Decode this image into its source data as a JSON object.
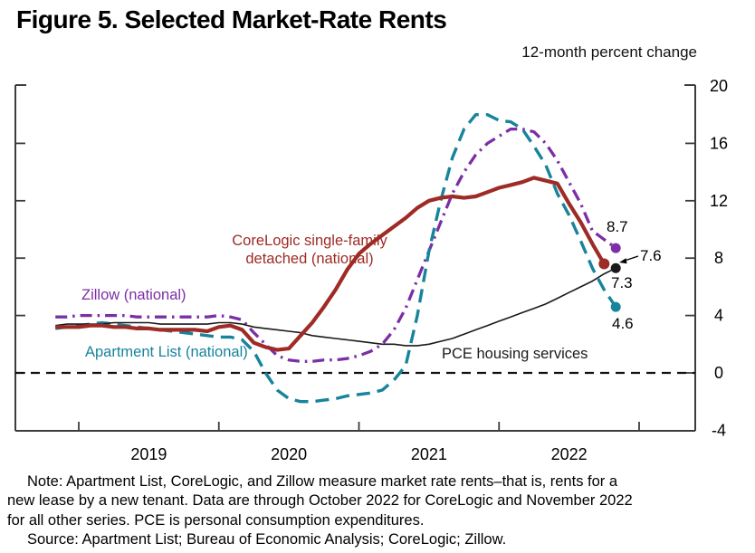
{
  "title": "Figure 5. Selected Market-Rate Rents",
  "axis_caption": "12-month percent change",
  "chart_data": {
    "type": "line",
    "title": "Figure 5. Selected Market-Rate Rents",
    "ylabel": "12-month percent change",
    "ylim": [
      -4,
      20
    ],
    "yticks": [
      20,
      16,
      12,
      8,
      4,
      0,
      -4
    ],
    "ytick_labels": [
      "20",
      "16",
      "12",
      "8",
      "4",
      "0",
      "-4"
    ],
    "x_labels": [
      "2019",
      "2020",
      "2021",
      "2022"
    ],
    "x_start": "2018-11",
    "zero_line": true,
    "legend_position": "on-chart",
    "series": [
      {
        "name": "CoreLogic single-family detached (national)",
        "slug": "corelogic",
        "color": "#9E2B25",
        "style": "solid",
        "end_label": "7.6",
        "last_month": "2022-10",
        "values": [
          3.2,
          3.2,
          3.2,
          3.3,
          3.3,
          3.2,
          3.2,
          3.1,
          3.1,
          3.0,
          3.0,
          3.0,
          3.0,
          2.9,
          3.2,
          3.3,
          3.0,
          2.1,
          1.8,
          1.6,
          1.7,
          2.6,
          3.5,
          4.6,
          5.8,
          7.2,
          8.3,
          9.0,
          9.6,
          10.2,
          10.8,
          11.5,
          12.0,
          12.2,
          12.3,
          12.2,
          12.3,
          12.6,
          12.9,
          13.1,
          13.3,
          13.6,
          13.4,
          13.2,
          11.8,
          10.5,
          9.0,
          7.6
        ]
      },
      {
        "name": "Zillow (national)",
        "slug": "zillow",
        "color": "#7B2EA6",
        "style": "dashdot",
        "end_label": "8.7",
        "last_month": "2022-11",
        "values": [
          3.9,
          3.9,
          4.0,
          4.0,
          4.0,
          4.0,
          4.0,
          3.9,
          3.9,
          3.9,
          3.9,
          3.9,
          3.9,
          3.9,
          4.0,
          3.9,
          3.7,
          2.8,
          2.0,
          1.2,
          0.9,
          0.8,
          0.8,
          0.9,
          0.9,
          1.0,
          1.2,
          1.5,
          2.0,
          3.0,
          4.5,
          6.5,
          8.5,
          10.5,
          12.5,
          14.0,
          15.2,
          16.0,
          16.5,
          17.0,
          17.0,
          16.8,
          16.0,
          14.8,
          13.3,
          11.8,
          9.9,
          9.3,
          8.7
        ]
      },
      {
        "name": "Apartment List (national)",
        "slug": "apartment-list",
        "color": "#17849B",
        "style": "dashed",
        "end_label": "4.6",
        "last_month": "2022-11",
        "values": [
          3.1,
          3.2,
          3.3,
          3.4,
          3.5,
          3.4,
          3.3,
          3.2,
          3.1,
          3.0,
          2.9,
          2.8,
          2.7,
          2.6,
          2.5,
          2.5,
          2.3,
          1.5,
          0.0,
          -1.2,
          -1.8,
          -2.0,
          -2.0,
          -1.9,
          -1.8,
          -1.6,
          -1.5,
          -1.4,
          -1.2,
          -0.5,
          0.5,
          4.0,
          8.5,
          12.0,
          15.0,
          17.0,
          18.0,
          18.0,
          17.6,
          17.5,
          17.0,
          15.8,
          14.5,
          12.5,
          11.0,
          9.2,
          7.3,
          5.8,
          4.6
        ]
      },
      {
        "name": "PCE housing services",
        "slug": "pce",
        "color": "#1a1a1a",
        "style": "solid-thin",
        "end_label": "7.3",
        "last_month": "2022-11",
        "values": [
          3.3,
          3.4,
          3.4,
          3.4,
          3.4,
          3.5,
          3.5,
          3.5,
          3.5,
          3.4,
          3.4,
          3.4,
          3.4,
          3.4,
          3.5,
          3.5,
          3.4,
          3.2,
          3.1,
          3.0,
          2.9,
          2.8,
          2.6,
          2.5,
          2.4,
          2.3,
          2.2,
          2.1,
          2.0,
          2.0,
          1.9,
          1.9,
          2.0,
          2.2,
          2.4,
          2.7,
          3.0,
          3.3,
          3.6,
          3.9,
          4.2,
          4.5,
          4.8,
          5.2,
          5.6,
          6.0,
          6.4,
          6.9,
          7.3
        ]
      }
    ]
  },
  "note": {
    "line1": "Note: Apartment List, CoreLogic, and Zillow measure market rate rents–that is, rents for a",
    "line2": "new lease by a new tenant. Data are through October 2022 for CoreLogic and November 2022",
    "line3": "for all other series. PCE is personal consumption expenditures.",
    "source": "Source: Apartment List; Bureau of Economic Analysis; CoreLogic; Zillow."
  }
}
